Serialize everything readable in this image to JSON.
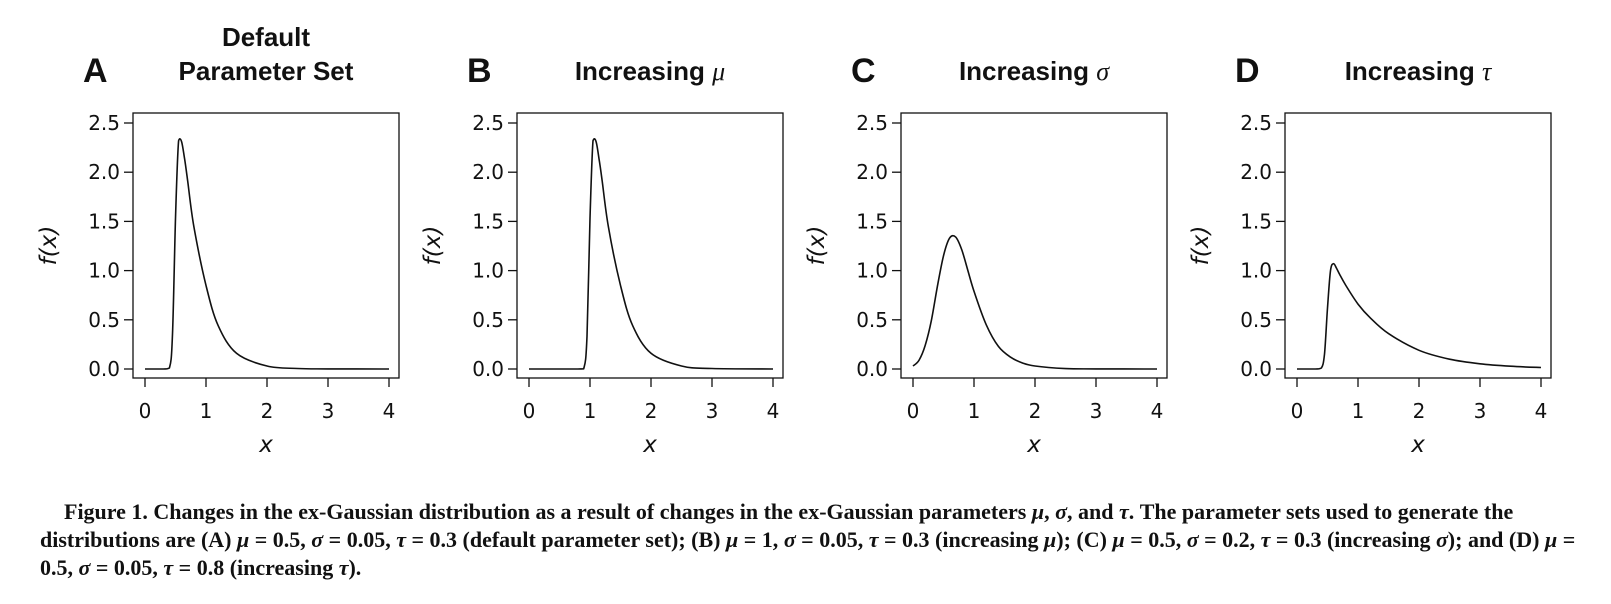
{
  "chart_data": [
    {
      "type": "line",
      "panel": "A",
      "title": "Default Parameter Set",
      "title_lines": [
        "Default",
        "Parameter Set"
      ],
      "xlabel": "x",
      "ylabel": "f(x)",
      "xlim": [
        0,
        4
      ],
      "ylim": [
        0,
        2.5
      ],
      "xticks": [
        "0",
        "1",
        "2",
        "3",
        "4"
      ],
      "yticks": [
        "0.0",
        "0.5",
        "1.0",
        "1.5",
        "2.0",
        "2.5"
      ],
      "params": {
        "mu": 0.5,
        "sigma": 0.05,
        "tau": 0.3
      },
      "series": [
        {
          "x": [
            0,
            0.3,
            0.4,
            0.45,
            0.5,
            0.55,
            0.6,
            0.65,
            0.7,
            0.8,
            1.0,
            1.2,
            1.5,
            2.0,
            2.5,
            3.0,
            4.0
          ],
          "y": [
            0,
            0,
            0.01,
            0.33,
            1.53,
            2.32,
            2.31,
            2.13,
            1.91,
            1.45,
            0.85,
            0.44,
            0.16,
            0.03,
            0.005,
            0.001,
            0
          ]
        }
      ]
    },
    {
      "type": "line",
      "panel": "B",
      "title": "Increasing μ",
      "title_lines": [
        "Increasing μ"
      ],
      "xlabel": "x",
      "ylabel": "f(x)",
      "xlim": [
        0,
        4
      ],
      "ylim": [
        0,
        2.5
      ],
      "xticks": [
        "0",
        "1",
        "2",
        "3",
        "4"
      ],
      "yticks": [
        "0.0",
        "0.5",
        "1.0",
        "1.5",
        "2.0",
        "2.5"
      ],
      "params": {
        "mu": 1,
        "sigma": 0.05,
        "tau": 0.3
      },
      "series": [
        {
          "x": [
            0,
            0.8,
            0.9,
            0.95,
            1.0,
            1.05,
            1.1,
            1.15,
            1.2,
            1.3,
            1.5,
            1.7,
            2.0,
            2.5,
            3.0,
            4.0
          ],
          "y": [
            0,
            0,
            0.01,
            0.33,
            1.53,
            2.32,
            2.31,
            2.13,
            1.91,
            1.45,
            0.85,
            0.44,
            0.16,
            0.03,
            0.005,
            0
          ]
        }
      ]
    },
    {
      "type": "line",
      "panel": "C",
      "title": "Increasing σ",
      "title_lines": [
        "Increasing σ"
      ],
      "xlabel": "x",
      "ylabel": "f(x)",
      "xlim": [
        0,
        4
      ],
      "ylim": [
        0,
        2.5
      ],
      "xticks": [
        "0",
        "1",
        "2",
        "3",
        "4"
      ],
      "yticks": [
        "0.0",
        "0.5",
        "1.0",
        "1.5",
        "2.0",
        "2.5"
      ],
      "params": {
        "mu": 0.5,
        "sigma": 0.2,
        "tau": 0.3
      },
      "series": [
        {
          "x": [
            0,
            0.1,
            0.2,
            0.3,
            0.4,
            0.5,
            0.6,
            0.7,
            0.8,
            0.9,
            1.0,
            1.2,
            1.4,
            1.6,
            1.8,
            2.0,
            2.5,
            3.0,
            4.0
          ],
          "y": [
            0.03,
            0.09,
            0.24,
            0.49,
            0.84,
            1.15,
            1.33,
            1.34,
            1.21,
            1.0,
            0.79,
            0.45,
            0.23,
            0.12,
            0.06,
            0.03,
            0.004,
            0.001,
            0
          ]
        }
      ]
    },
    {
      "type": "line",
      "panel": "D",
      "title": "Increasing τ",
      "title_lines": [
        "Increasing τ"
      ],
      "xlabel": "x",
      "ylabel": "f(x)",
      "xlim": [
        0,
        4
      ],
      "ylim": [
        0,
        2.5
      ],
      "xticks": [
        "0",
        "1",
        "2",
        "3",
        "4"
      ],
      "yticks": [
        "0.0",
        "0.5",
        "1.0",
        "1.5",
        "2.0",
        "2.5"
      ],
      "params": {
        "mu": 0.5,
        "sigma": 0.05,
        "tau": 0.8
      },
      "series": [
        {
          "x": [
            0,
            0.3,
            0.4,
            0.45,
            0.5,
            0.55,
            0.6,
            0.65,
            0.7,
            0.8,
            1.0,
            1.2,
            1.5,
            2.0,
            2.5,
            3.0,
            3.5,
            4.0
          ],
          "y": [
            0,
            0,
            0.01,
            0.15,
            0.62,
            1.0,
            1.07,
            1.02,
            0.96,
            0.85,
            0.66,
            0.52,
            0.36,
            0.19,
            0.1,
            0.053,
            0.028,
            0.015
          ]
        }
      ]
    }
  ],
  "caption": {
    "label": "Figure 1.",
    "parts": [
      {
        "t": " Changes in the ex-Gaussian distribution as a result of changes in the ex-Gaussian parameters "
      },
      {
        "t": "μ",
        "i": true
      },
      {
        "t": ", "
      },
      {
        "t": "σ",
        "i": true
      },
      {
        "t": ", and "
      },
      {
        "t": "τ",
        "i": true
      },
      {
        "t": ". The parameter sets used to generate the distributions are (A) "
      },
      {
        "t": "μ",
        "i": true
      },
      {
        "t": " = 0.5, "
      },
      {
        "t": "σ",
        "i": true
      },
      {
        "t": " = 0.05, "
      },
      {
        "t": "τ",
        "i": true
      },
      {
        "t": " = 0.3 (default parameter set); (B) "
      },
      {
        "t": "μ",
        "i": true
      },
      {
        "t": " = 1, "
      },
      {
        "t": "σ",
        "i": true
      },
      {
        "t": " = 0.05, "
      },
      {
        "t": "τ",
        "i": true
      },
      {
        "t": " = 0.3 (increasing "
      },
      {
        "t": "μ",
        "i": true
      },
      {
        "t": "); (C) "
      },
      {
        "t": "μ",
        "i": true
      },
      {
        "t": " = 0.5, "
      },
      {
        "t": "σ",
        "i": true
      },
      {
        "t": " = 0.2, "
      },
      {
        "t": "τ",
        "i": true
      },
      {
        "t": " = 0.3 (increasing "
      },
      {
        "t": "σ",
        "i": true
      },
      {
        "t": "); and (D) "
      },
      {
        "t": "μ",
        "i": true
      },
      {
        "t": " = 0.5, "
      },
      {
        "t": "σ",
        "i": true
      },
      {
        "t": " = 0.05, "
      },
      {
        "t": "τ",
        "i": true
      },
      {
        "t": " = 0.8 (increasing "
      },
      {
        "t": "τ",
        "i": true
      },
      {
        "t": ")."
      }
    ]
  }
}
